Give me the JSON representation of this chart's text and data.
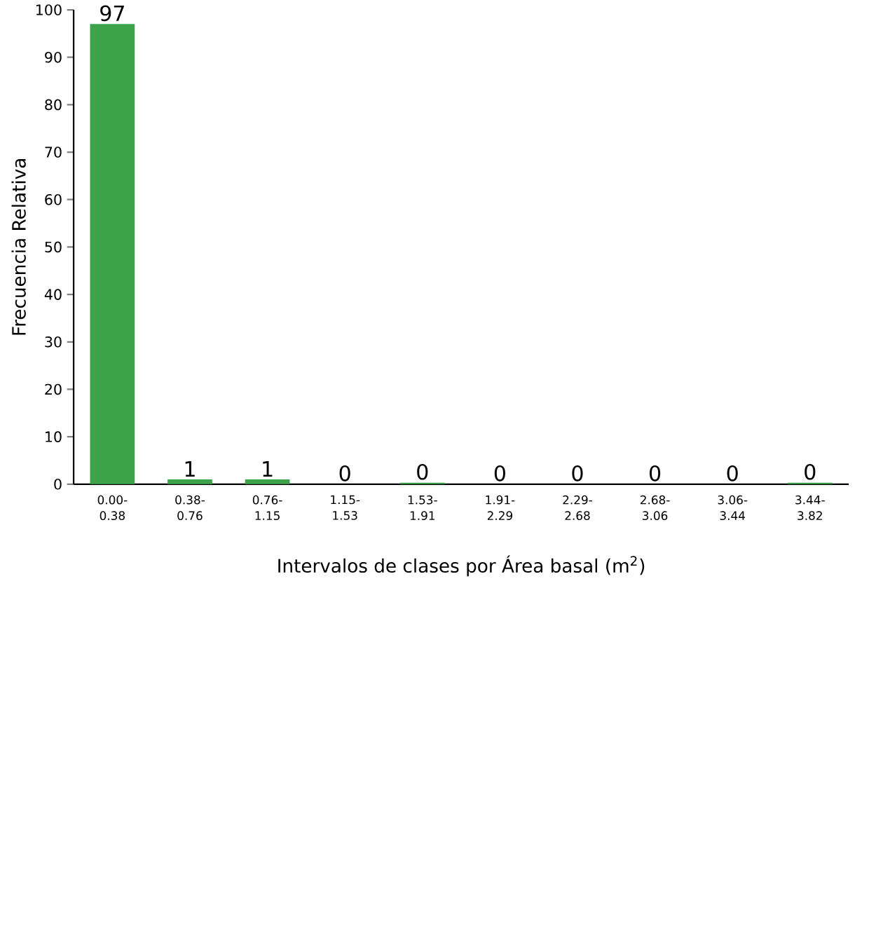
{
  "chart_data": {
    "type": "bar",
    "xlabel": "Intervalos de clases por Área basal (m$^{2}$)",
    "ylabel": "Frecuencia Relativa",
    "categories": [
      "0.00-0.38",
      "0.38-0.76",
      "0.76-1.15",
      "1.15-1.53",
      "1.53-1.91",
      "1.91-2.29",
      "2.29-2.68",
      "2.68-3.06",
      "3.06-3.44",
      "3.44-3.82"
    ],
    "values": [
      97,
      1,
      1,
      0,
      0.3,
      0,
      0,
      0,
      0,
      0.3
    ],
    "value_labels": [
      "97",
      "1",
      "1",
      "0",
      "0",
      "0",
      "0",
      "0",
      "0",
      "0"
    ],
    "color": "#3da34a",
    "ylim": [
      0,
      100
    ],
    "yticks": [
      0,
      10,
      20,
      30,
      40,
      50,
      60,
      70,
      80,
      90,
      100
    ],
    "grid": false
  }
}
